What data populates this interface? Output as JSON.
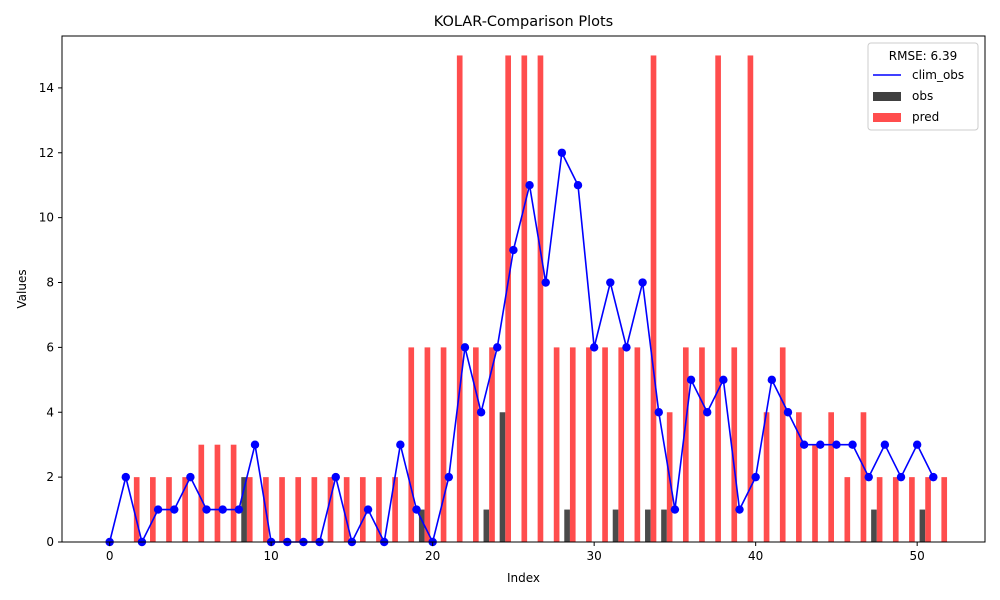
{
  "chart_data": {
    "type": "bar",
    "title": "KOLAR-Comparison Plots",
    "xlabel": "Index",
    "ylabel": "Values",
    "xlim": [
      -2.95,
      54.2
    ],
    "ylim": [
      0,
      15.6
    ],
    "x_ticks": [
      0,
      10,
      20,
      30,
      40,
      50
    ],
    "y_ticks": [
      0,
      2,
      4,
      6,
      8,
      10,
      12,
      14
    ],
    "grid": false,
    "legend": {
      "title": "RMSE: 6.39",
      "position": "top-right",
      "entries": [
        {
          "label": "clim_obs",
          "kind": "line",
          "color": "#0000ff"
        },
        {
          "label": "obs",
          "kind": "bar",
          "color": "#404040"
        },
        {
          "label": "pred",
          "kind": "bar",
          "color": "#ff4d4d"
        }
      ]
    },
    "x": [
      0,
      1,
      2,
      3,
      4,
      5,
      6,
      7,
      8,
      9,
      10,
      11,
      12,
      13,
      14,
      15,
      16,
      17,
      18,
      19,
      20,
      21,
      22,
      23,
      24,
      25,
      26,
      27,
      28,
      29,
      30,
      31,
      32,
      33,
      34,
      35,
      36,
      37,
      38,
      39,
      40,
      41,
      42,
      43,
      44,
      45,
      46,
      47,
      48,
      49,
      50,
      51
    ],
    "series": [
      {
        "name": "clim_obs",
        "type": "line",
        "color": "#0000ff",
        "values": [
          0,
          2,
          0,
          1,
          1,
          2,
          1,
          1,
          1,
          3,
          0,
          0,
          0,
          0,
          2,
          0,
          1,
          0,
          3,
          1,
          0,
          2,
          6,
          4,
          6,
          9,
          11,
          8,
          12,
          11,
          6,
          8,
          6,
          8,
          4,
          1,
          5,
          4,
          5,
          1,
          2,
          5,
          4,
          3,
          3,
          3,
          3,
          2,
          3,
          2,
          3,
          2
        ]
      },
      {
        "name": "obs",
        "type": "bar",
        "color": "#404040",
        "values": [
          0,
          0,
          0,
          0,
          0,
          0,
          0,
          0,
          2,
          0,
          0,
          0,
          0,
          0,
          0,
          0,
          0,
          0,
          0,
          1,
          0,
          0,
          0,
          1,
          4,
          0,
          0,
          0,
          1,
          0,
          0,
          1,
          0,
          1,
          1,
          0,
          0,
          0,
          0,
          0,
          0,
          0,
          0,
          0,
          0,
          0,
          0,
          1,
          0,
          0,
          1,
          0
        ]
      },
      {
        "name": "pred",
        "type": "bar",
        "color": "#ff4d4d",
        "values": [
          0,
          2,
          2,
          2,
          2,
          3,
          3,
          3,
          2,
          2,
          2,
          2,
          2,
          2,
          2,
          2,
          2,
          2,
          6,
          6,
          6,
          15,
          6,
          6,
          15,
          15,
          15,
          6,
          6,
          6,
          6,
          6,
          6,
          15,
          4,
          6,
          6,
          15,
          6,
          15,
          4,
          6,
          4,
          3,
          4,
          2,
          4,
          2,
          2,
          2,
          2,
          2
        ]
      }
    ]
  }
}
